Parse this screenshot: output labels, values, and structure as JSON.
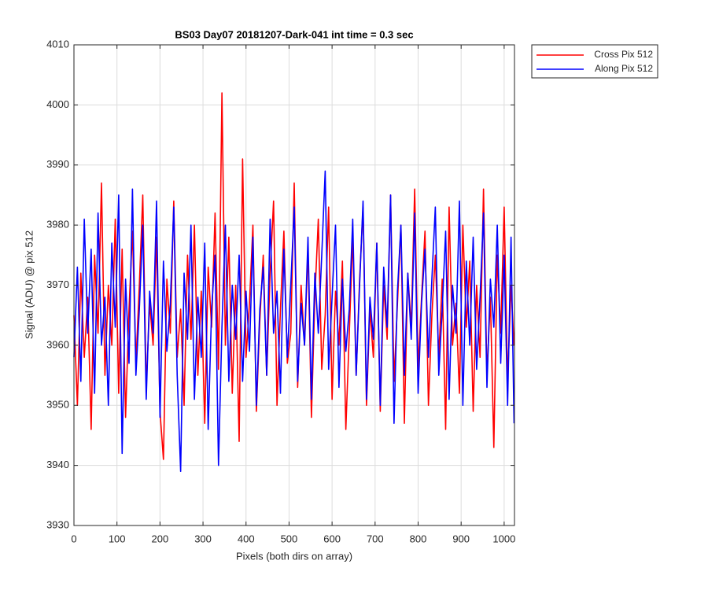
{
  "chart_data": {
    "type": "line",
    "title": "BS03 Day07 20181207-Dark-041 int time = 0.3 sec",
    "xlabel": "Pixels (both dirs on array)",
    "ylabel": "Signal (ADU) @ pix 512",
    "xlim": [
      0,
      1024
    ],
    "ylim": [
      3930,
      4010
    ],
    "xticks": [
      0,
      100,
      200,
      300,
      400,
      500,
      600,
      700,
      800,
      900,
      1000
    ],
    "yticks": [
      3930,
      3940,
      3950,
      3960,
      3970,
      3980,
      3990,
      4000,
      4010
    ],
    "grid": true,
    "legend": "outside-northeast",
    "x": [
      0,
      8,
      16,
      24,
      32,
      40,
      48,
      56,
      64,
      72,
      80,
      88,
      96,
      104,
      112,
      120,
      128,
      136,
      144,
      152,
      160,
      168,
      176,
      184,
      192,
      200,
      208,
      216,
      224,
      232,
      240,
      248,
      256,
      264,
      272,
      280,
      288,
      296,
      304,
      312,
      320,
      328,
      336,
      344,
      352,
      360,
      368,
      376,
      384,
      392,
      400,
      408,
      416,
      424,
      432,
      440,
      448,
      456,
      464,
      472,
      480,
      488,
      496,
      504,
      512,
      520,
      528,
      536,
      544,
      552,
      560,
      568,
      576,
      584,
      592,
      600,
      608,
      616,
      624,
      632,
      640,
      648,
      656,
      664,
      672,
      680,
      688,
      696,
      704,
      712,
      720,
      728,
      736,
      744,
      752,
      760,
      768,
      776,
      784,
      792,
      800,
      808,
      816,
      824,
      832,
      840,
      848,
      856,
      864,
      872,
      880,
      888,
      896,
      904,
      912,
      920,
      928,
      936,
      944,
      952,
      960,
      968,
      976,
      984,
      992,
      1000,
      1008,
      1016,
      1023
    ],
    "series": [
      {
        "name": "Cross Pix 512",
        "color": "#ff0000",
        "values": [
          3965,
          3950,
          3972,
          3958,
          3968,
          3946,
          3975,
          3962,
          3987,
          3955,
          3970,
          3960,
          3981,
          3952,
          3976,
          3948,
          3966,
          3979,
          3957,
          3970,
          3985,
          3953,
          3967,
          3960,
          3978,
          3949,
          3941,
          3971,
          3962,
          3984,
          3958,
          3966,
          3950,
          3975,
          3961,
          3980,
          3955,
          3969,
          3947,
          3973,
          3963,
          3982,
          3956,
          4002,
          3960,
          3978,
          3952,
          3970,
          3944,
          3991,
          3958,
          3967,
          3980,
          3949,
          3964,
          3975,
          3955,
          3972,
          3984,
          3950,
          3966,
          3979,
          3957,
          3962,
          3987,
          3953,
          3970,
          3960,
          3976,
          3948,
          3968,
          3981,
          3956,
          3965,
          3983,
          3951,
          3969,
          3960,
          3974,
          3946,
          3962,
          3978,
          3955,
          3971,
          3983,
          3950,
          3966,
          3958,
          3977,
          3949,
          3970,
          3961,
          3985,
          3954,
          3967,
          3980,
          3947,
          3972,
          3963,
          3986,
          3956,
          3968,
          3979,
          3950,
          3965,
          3975,
          3958,
          3971,
          3946,
          3983,
          3960,
          3967,
          3952,
          3980,
          3963,
          3974,
          3949,
          3970,
          3958,
          3986,
          3955,
          3968,
          3943,
          3975,
          3962,
          3983,
          3954,
          3970,
          3960
        ]
      },
      {
        "name": "Along Pix 512",
        "color": "#0000ff",
        "values": [
          3958,
          3973,
          3954,
          3981,
          3962,
          3976,
          3952,
          3982,
          3960,
          3968,
          3950,
          3977,
          3963,
          3985,
          3942,
          3971,
          3957,
          3986,
          3955,
          3966,
          3980,
          3951,
          3969,
          3962,
          3984,
          3948,
          3974,
          3959,
          3967,
          3983,
          3955,
          3939,
          3972,
          3961,
          3980,
          3951,
          3968,
          3958,
          3977,
          3946,
          3966,
          3975,
          3940,
          3963,
          3980,
          3954,
          3970,
          3961,
          3975,
          3954,
          3969,
          3959,
          3978,
          3950,
          3966,
          3973,
          3955,
          3981,
          3962,
          3969,
          3952,
          3976,
          3958,
          3970,
          3983,
          3954,
          3967,
          3960,
          3978,
          3951,
          3972,
          3962,
          3975,
          3989,
          3956,
          3968,
          3980,
          3953,
          3971,
          3959,
          3966,
          3981,
          3955,
          3970,
          3984,
          3951,
          3968,
          3961,
          3977,
          3950,
          3973,
          3963,
          3985,
          3947,
          3969,
          3980,
          3955,
          3972,
          3961,
          3982,
          3952,
          3967,
          3976,
          3958,
          3971,
          3983,
          3955,
          3966,
          3979,
          3951,
          3970,
          3962,
          3984,
          3950,
          3974,
          3960,
          3978,
          3956,
          3968,
          3982,
          3953,
          3971,
          3963,
          3980,
          3957,
          3975,
          3950,
          3978,
          3947
        ]
      }
    ]
  }
}
